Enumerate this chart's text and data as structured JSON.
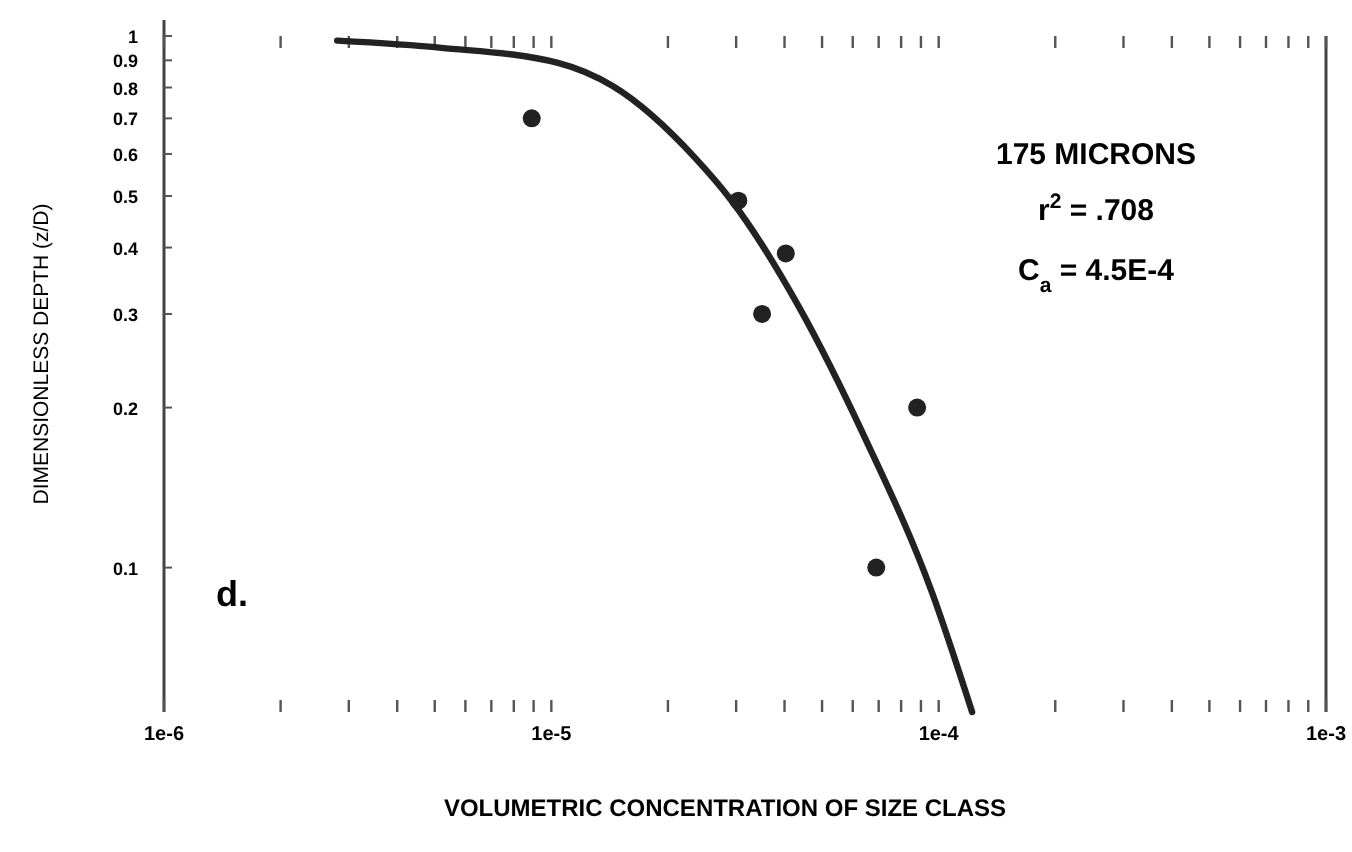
{
  "chart_data": {
    "type": "scatter",
    "xlabel": "VOLUMETRIC CONCENTRATION OF SIZE CLASS",
    "ylabel": "DIMENSIONLESS DEPTH (z/D)",
    "log": "xy",
    "grid": false,
    "xlim": [
      1e-06,
      0.001
    ],
    "ylim": [
      0.0535,
      1
    ],
    "xticks": [
      {
        "value": 1e-06,
        "label": "1e-6"
      },
      {
        "value": 2e-06,
        "label": null
      },
      {
        "value": 3e-06,
        "label": null
      },
      {
        "value": 4e-06,
        "label": null
      },
      {
        "value": 5e-06,
        "label": null
      },
      {
        "value": 6e-06,
        "label": null
      },
      {
        "value": 7e-06,
        "label": null
      },
      {
        "value": 8e-06,
        "label": null
      },
      {
        "value": 9e-06,
        "label": null
      },
      {
        "value": 1e-05,
        "label": "1e-5"
      },
      {
        "value": 2e-05,
        "label": null
      },
      {
        "value": 3e-05,
        "label": null
      },
      {
        "value": 4e-05,
        "label": null
      },
      {
        "value": 5e-05,
        "label": null
      },
      {
        "value": 6e-05,
        "label": null
      },
      {
        "value": 7e-05,
        "label": null
      },
      {
        "value": 8e-05,
        "label": null
      },
      {
        "value": 9e-05,
        "label": null
      },
      {
        "value": 0.0001,
        "label": "1e-4"
      },
      {
        "value": 0.0002,
        "label": null
      },
      {
        "value": 0.0003,
        "label": null
      },
      {
        "value": 0.0004,
        "label": null
      },
      {
        "value": 0.0005,
        "label": null
      },
      {
        "value": 0.0006,
        "label": null
      },
      {
        "value": 0.0007,
        "label": null
      },
      {
        "value": 0.0008,
        "label": null
      },
      {
        "value": 0.0009,
        "label": null
      },
      {
        "value": 0.001,
        "label": "1e-3"
      }
    ],
    "yticks": [
      1,
      0.9,
      0.8,
      0.7,
      0.6,
      0.5,
      0.4,
      0.3,
      0.2,
      0.1
    ],
    "annotations": [
      "175 MICRONS",
      "r$^{2}$ = .708",
      "C$_{a}$ = 4.5E-4",
      "d."
    ],
    "series": [
      {
        "marker": "circle",
        "color": "#222222",
        "x": [
          8.9e-06,
          3.04e-05,
          4.03e-05,
          3.5e-05,
          8.8e-05,
          6.9e-05
        ],
        "values": [
          0.7,
          0.49,
          0.39,
          0.3,
          0.2,
          0.1
        ]
      },
      {
        "type": "line",
        "marker": "none",
        "line_style": "solid",
        "color": "#222222",
        "x": [
          2.8e-06,
          5.2e-06,
          1.04e-05,
          1.44e-05,
          2.35e-05,
          2.92e-05,
          4.35e-05,
          6.46e-05,
          9.6e-05,
          0.000122
        ],
        "values": [
          0.98,
          0.95,
          0.89,
          0.805,
          0.59,
          0.49,
          0.31,
          0.175,
          0.09,
          0.0535
        ]
      }
    ]
  }
}
